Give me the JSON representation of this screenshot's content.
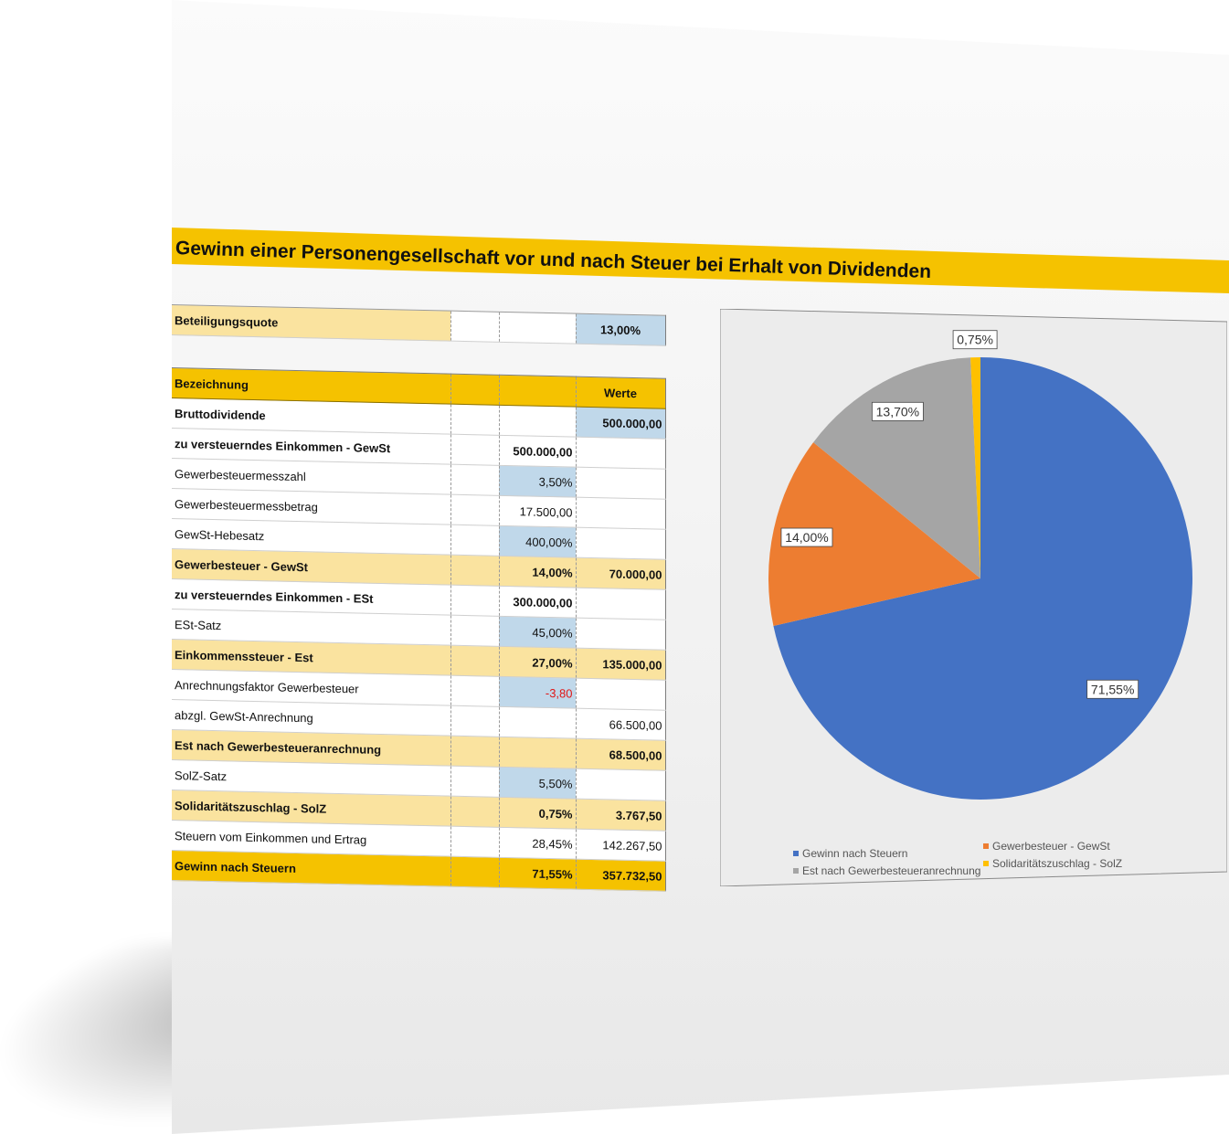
{
  "title": "Gewinn einer Personengesellschaft vor und nach Steuer bei Erhalt von Dividenden",
  "beteiligung": {
    "label": "Beteiligungsquote",
    "value": "13,00%"
  },
  "table": {
    "header": {
      "label": "Bezeichnung",
      "col3": "Werte"
    },
    "rows": [
      {
        "label": "Bruttodividende",
        "col2": "",
        "col3": "500.000,00"
      },
      {
        "label": "zu versteuerndes Einkommen - GewSt",
        "col2": "500.000,00",
        "col3": ""
      },
      {
        "label": "Gewerbesteuermesszahl",
        "col2": "3,50%",
        "col3": ""
      },
      {
        "label": "Gewerbesteuermessbetrag",
        "col2": "17.500,00",
        "col3": ""
      },
      {
        "label": "GewSt-Hebesatz",
        "col2": "400,00%",
        "col3": ""
      },
      {
        "label": "Gewerbesteuer - GewSt",
        "col2": "14,00%",
        "col3": "70.000,00"
      },
      {
        "label": "zu versteuerndes Einkommen - ESt",
        "col2": "300.000,00",
        "col3": ""
      },
      {
        "label": "ESt-Satz",
        "col2": "45,00%",
        "col3": ""
      },
      {
        "label": "Einkommenssteuer - Est",
        "col2": "27,00%",
        "col3": "135.000,00"
      },
      {
        "label": "Anrechnungsfaktor Gewerbesteuer",
        "col2": "-3,80",
        "col3": ""
      },
      {
        "label": "abzgl. GewSt-Anrechnung",
        "col2": "",
        "col3": "66.500,00"
      },
      {
        "label": "Est nach Gewerbesteueranrechnung",
        "col2": "",
        "col3": "68.500,00"
      },
      {
        "label": "SolZ-Satz",
        "col2": "5,50%",
        "col3": ""
      },
      {
        "label": "Solidaritätszuschlag - SolZ",
        "col2": "0,75%",
        "col3": "3.767,50"
      },
      {
        "label": "Steuern vom Einkommen und Ertrag",
        "col2": "28,45%",
        "col3": "142.267,50"
      },
      {
        "label": "Gewinn nach Steuern",
        "col2": "71,55%",
        "col3": "357.732,50"
      }
    ]
  },
  "chart_data": {
    "type": "pie",
    "categories": [
      "Gewinn nach Steuern",
      "Gewerbesteuer - GewSt",
      "Est nach Gewerbesteueranrechnung",
      "Solidaritätszuschlag - SolZ"
    ],
    "values": [
      71.55,
      14.0,
      13.7,
      0.75
    ],
    "labels": [
      "71,55%",
      "14,00%",
      "13,70%",
      "0,75%"
    ],
    "colors": [
      "#4472c4",
      "#ed7d31",
      "#a5a5a5",
      "#ffc000"
    ],
    "legend_position": "bottom"
  }
}
